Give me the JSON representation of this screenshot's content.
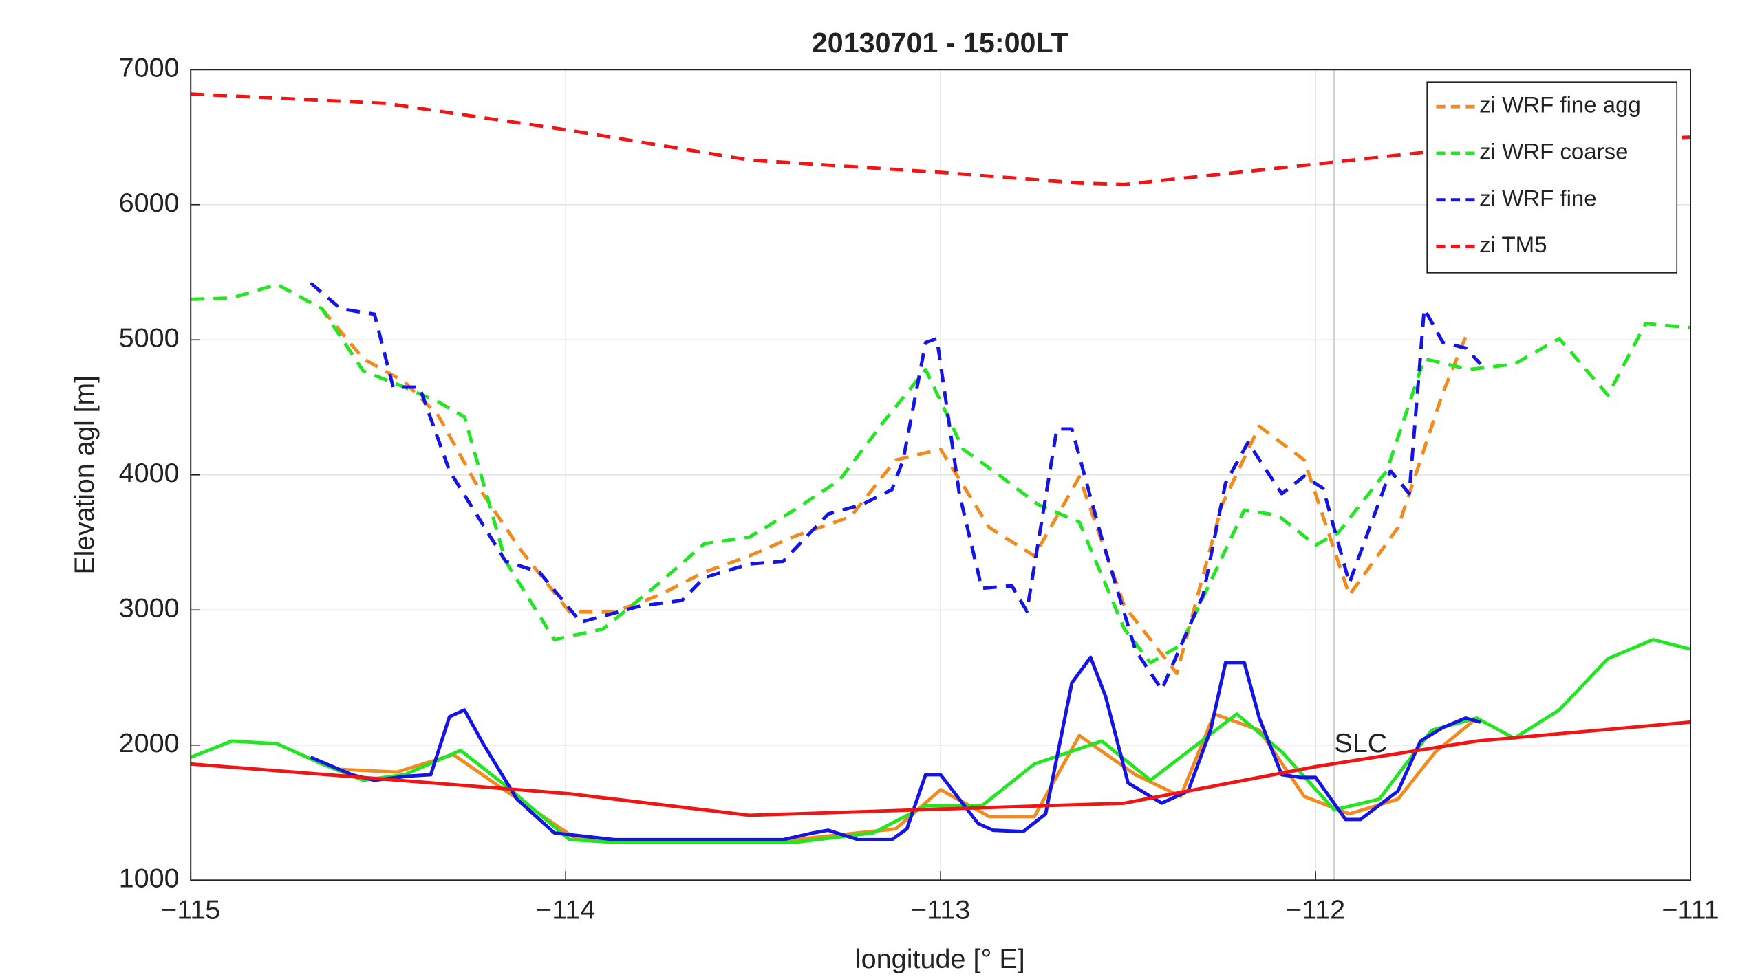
{
  "chart_data": {
    "type": "line",
    "title": "20130701 - 15:00LT",
    "xlabel": "longitude [° E]",
    "ylabel": "Elevation agl [m]",
    "xlim": [
      -115,
      -111
    ],
    "ylim": [
      1000,
      7000
    ],
    "xticks": [
      {
        "value": -115,
        "label": "−115"
      },
      {
        "value": -114,
        "label": "−114"
      },
      {
        "value": -113,
        "label": "−113"
      },
      {
        "value": -112,
        "label": "−112"
      },
      {
        "value": -111,
        "label": "−111"
      }
    ],
    "yticks": [
      1000,
      2000,
      3000,
      4000,
      5000,
      6000,
      7000
    ],
    "grid": true,
    "legend": "upper right",
    "annotations": [
      {
        "text": "SLC",
        "x": -111.95,
        "y": 2000
      }
    ],
    "series": [
      {
        "name": "zi WRF fine agg",
        "color": "#f28a1e",
        "dashed": true,
        "x": [
          -114.65,
          -114.54,
          -114.43,
          -114.34,
          -114.24,
          -114.12,
          -113.99,
          -113.87,
          -113.75,
          -113.63,
          -113.51,
          -113.39,
          -113.24,
          -113.12,
          -113.0,
          -112.87,
          -112.75,
          -112.63,
          -112.51,
          -112.37,
          -112.25,
          -112.15,
          -112.03,
          -111.91,
          -111.78,
          -111.66,
          -111.6
        ],
        "values": [
          5230,
          4860,
          4690,
          4440,
          3940,
          3445,
          2985,
          2985,
          3110,
          3280,
          3400,
          3545,
          3690,
          4110,
          4190,
          3610,
          3400,
          3985,
          3030,
          2530,
          3775,
          4360,
          4110,
          3110,
          3610,
          4610,
          5020
        ]
      },
      {
        "name": "zi WRF coarse",
        "color": "#22e622",
        "dashed": true,
        "x": [
          -115,
          -114.89,
          -114.77,
          -114.65,
          -114.54,
          -114.43,
          -114.34,
          -114.27,
          -114.16,
          -114.03,
          -113.9,
          -113.75,
          -113.63,
          -113.51,
          -113.39,
          -113.27,
          -113.15,
          -113.04,
          -112.94,
          -112.84,
          -112.74,
          -112.63,
          -112.51,
          -112.44,
          -112.36,
          -112.19,
          -112.1,
          -112.0,
          -111.94,
          -111.81,
          -111.71,
          -111.59,
          -111.47,
          -111.35,
          -111.22,
          -111.12,
          -111
        ],
        "values": [
          5300,
          5310,
          5410,
          5230,
          4770,
          4650,
          4540,
          4430,
          3360,
          2780,
          2860,
          3200,
          3490,
          3540,
          3740,
          3960,
          4400,
          4780,
          4190,
          3990,
          3780,
          3650,
          2860,
          2610,
          2740,
          3740,
          3700,
          3480,
          3570,
          4030,
          4860,
          4780,
          4820,
          5010,
          4590,
          5120,
          5090
        ]
      },
      {
        "name": "zi WRF fine",
        "color": "#1414e6",
        "dashed": true,
        "x": [
          -114.68,
          -114.6,
          -114.51,
          -114.46,
          -114.39,
          -114.31,
          -114.16,
          -114.07,
          -113.96,
          -113.8,
          -113.69,
          -113.63,
          -113.51,
          -113.42,
          -113.3,
          -113.21,
          -113.13,
          -113.1,
          -113.04,
          -113.01,
          -112.95,
          -112.89,
          -112.81,
          -112.77,
          -112.69,
          -112.65,
          -112.57,
          -112.48,
          -112.41,
          -112.3,
          -112.24,
          -112.18,
          -112.09,
          -112.03,
          -111.98,
          -111.91,
          -111.8,
          -111.75,
          -111.71,
          -111.66,
          -111.6,
          -111.56
        ],
        "values": [
          5420,
          5230,
          5190,
          4650,
          4650,
          4030,
          3360,
          3280,
          2910,
          3030,
          3070,
          3240,
          3340,
          3360,
          3710,
          3780,
          3890,
          4110,
          4980,
          5010,
          3860,
          3160,
          3180,
          2990,
          4340,
          4340,
          3530,
          2700,
          2410,
          3110,
          3940,
          4240,
          3860,
          3990,
          3900,
          3200,
          4030,
          3860,
          5230,
          4980,
          4940,
          4820
        ]
      },
      {
        "name": "zi TM5",
        "color": "#f01414",
        "dashed": true,
        "x": [
          -115,
          -114.48,
          -113.99,
          -113.51,
          -113.0,
          -112.63,
          -112.51,
          -112.0,
          -111.57,
          -111
        ],
        "values": [
          6820,
          6750,
          6550,
          6330,
          6240,
          6160,
          6150,
          6300,
          6430,
          6500
        ]
      },
      {
        "color": "#f28a1e",
        "dashed": false,
        "x": [
          -114.6,
          -114.45,
          -114.3,
          -114.18,
          -113.98,
          -113.86,
          -113.39,
          -113.12,
          -113.0,
          -112.87,
          -112.75,
          -112.63,
          -112.48,
          -112.36,
          -112.27,
          -112.15,
          -112.03,
          -111.91,
          -111.78,
          -111.68,
          -111.57
        ],
        "values": [
          1820,
          1800,
          1930,
          1700,
          1320,
          1290,
          1300,
          1380,
          1670,
          1470,
          1470,
          2070,
          1780,
          1620,
          2230,
          2110,
          1620,
          1490,
          1600,
          1950,
          2200
        ]
      },
      {
        "color": "#22e622",
        "dashed": false,
        "x": [
          -115,
          -114.89,
          -114.77,
          -114.65,
          -114.54,
          -114.43,
          -114.28,
          -114.16,
          -113.99,
          -113.87,
          -113.63,
          -113.39,
          -113.18,
          -113.04,
          -112.89,
          -112.75,
          -112.57,
          -112.44,
          -112.21,
          -112.09,
          -111.95,
          -111.83,
          -111.69,
          -111.57,
          -111.47,
          -111.35,
          -111.22,
          -111.1,
          -111
        ],
        "values": [
          1910,
          2030,
          2010,
          1860,
          1740,
          1780,
          1960,
          1700,
          1300,
          1280,
          1280,
          1280,
          1350,
          1550,
          1550,
          1860,
          2030,
          1740,
          2230,
          1950,
          1520,
          1600,
          2110,
          2200,
          2050,
          2260,
          2640,
          2780,
          2710
        ]
      },
      {
        "color": "#1414e6",
        "dashed": false,
        "x": [
          -114.68,
          -114.57,
          -114.51,
          -114.42,
          -114.36,
          -114.31,
          -114.27,
          -114.22,
          -114.13,
          -114.03,
          -113.87,
          -113.42,
          -113.34,
          -113.3,
          -113.22,
          -113.13,
          -113.09,
          -113.04,
          -113.0,
          -112.9,
          -112.86,
          -112.78,
          -112.72,
          -112.65,
          -112.6,
          -112.56,
          -112.5,
          -112.41,
          -112.34,
          -112.28,
          -112.24,
          -112.19,
          -112.15,
          -112.09,
          -112.04,
          -112.0,
          -111.92,
          -111.88,
          -111.78,
          -111.72,
          -111.66,
          -111.6,
          -111.56
        ],
        "values": [
          1910,
          1780,
          1740,
          1770,
          1780,
          2210,
          2260,
          2010,
          1600,
          1350,
          1300,
          1300,
          1350,
          1370,
          1300,
          1300,
          1380,
          1780,
          1780,
          1420,
          1370,
          1360,
          1490,
          2460,
          2650,
          2360,
          1720,
          1570,
          1660,
          2110,
          2610,
          2610,
          2200,
          1780,
          1760,
          1760,
          1450,
          1450,
          1660,
          2030,
          2130,
          2200,
          2170
        ]
      },
      {
        "color": "#f01414",
        "dashed": false,
        "x": [
          -115,
          -113.99,
          -113.51,
          -112.51,
          -112.0,
          -111.57,
          -111
        ],
        "values": [
          1860,
          1640,
          1480,
          1570,
          1840,
          2030,
          2170
        ]
      }
    ]
  }
}
